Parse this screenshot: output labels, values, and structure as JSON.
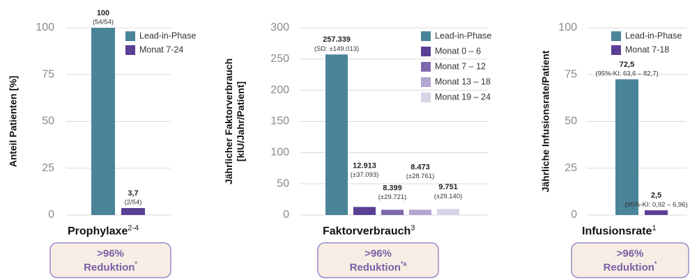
{
  "chart_data": [
    {
      "type": "bar",
      "ylabel": [
        "Anteil Patienten [%]"
      ],
      "xlabel": "Prophylaxe",
      "xlabel_sup": "2-4",
      "categories": [
        "Lead-in-Phase",
        "Monat 7-24"
      ],
      "values": [
        100,
        3.7
      ],
      "value_labels": [
        "100",
        "3,7"
      ],
      "value_notes": [
        "(54/54)",
        "(2/54)"
      ],
      "colors": [
        "#4a8499",
        "#5b3f94"
      ],
      "ylim": [
        0,
        100
      ],
      "yticks": [
        0,
        25,
        50,
        75,
        100
      ],
      "grid": true,
      "callout": {
        "line1": ">96%",
        "line2": "Reduktion",
        "sup": "*"
      }
    },
    {
      "type": "bar",
      "ylabel": [
        "Jährlicher Faktorverbrauch",
        "[kIU/Jahr/Patient]"
      ],
      "xlabel": "Faktorverbrauch",
      "xlabel_sup": "3",
      "categories": [
        "Lead-in-Phase",
        "Monat 0 – 6",
        "Monat 7 – 12",
        "Monat 13 – 18",
        "Monat 19 – 24"
      ],
      "values": [
        257.339,
        12.913,
        8.399,
        8.473,
        9.751
      ],
      "value_labels": [
        "257.339",
        "12.913",
        "8.399",
        "8.473",
        "9.751"
      ],
      "value_notes": [
        "(SD: ±149.013)",
        "(±37.093)",
        "(±29.721)",
        "(±28.761)",
        "(±29.140)"
      ],
      "colors": [
        "#4a8499",
        "#5b3f94",
        "#7e68ad",
        "#b3a6d1",
        "#d9d3e8"
      ],
      "ylim": [
        0,
        300
      ],
      "yticks": [
        0,
        50,
        100,
        150,
        200,
        250,
        300
      ],
      "grid": true,
      "callout": {
        "line1": ">96%",
        "line2": "Reduktion",
        "sup": "*a"
      }
    },
    {
      "type": "bar",
      "ylabel": [
        "Jährliche Infusionsrate/Patient"
      ],
      "xlabel": "Infusionsrate",
      "xlabel_sup": "1",
      "categories": [
        "Lead-in-Phase",
        "Monat 7-18"
      ],
      "values": [
        72.5,
        2.5
      ],
      "value_labels": [
        "72,5",
        "2,5"
      ],
      "value_notes": [
        "(95%-KI: 63,6 – 82,7)",
        "(95%-KI: 0,92 – 6,96)"
      ],
      "colors": [
        "#4a8499",
        "#5b3f94"
      ],
      "ylim": [
        0,
        100
      ],
      "yticks": [
        0,
        25,
        50,
        75,
        100
      ],
      "grid": true,
      "callout": {
        "line1": ">96%",
        "line2": "Reduktion",
        "sup": "*"
      }
    }
  ]
}
